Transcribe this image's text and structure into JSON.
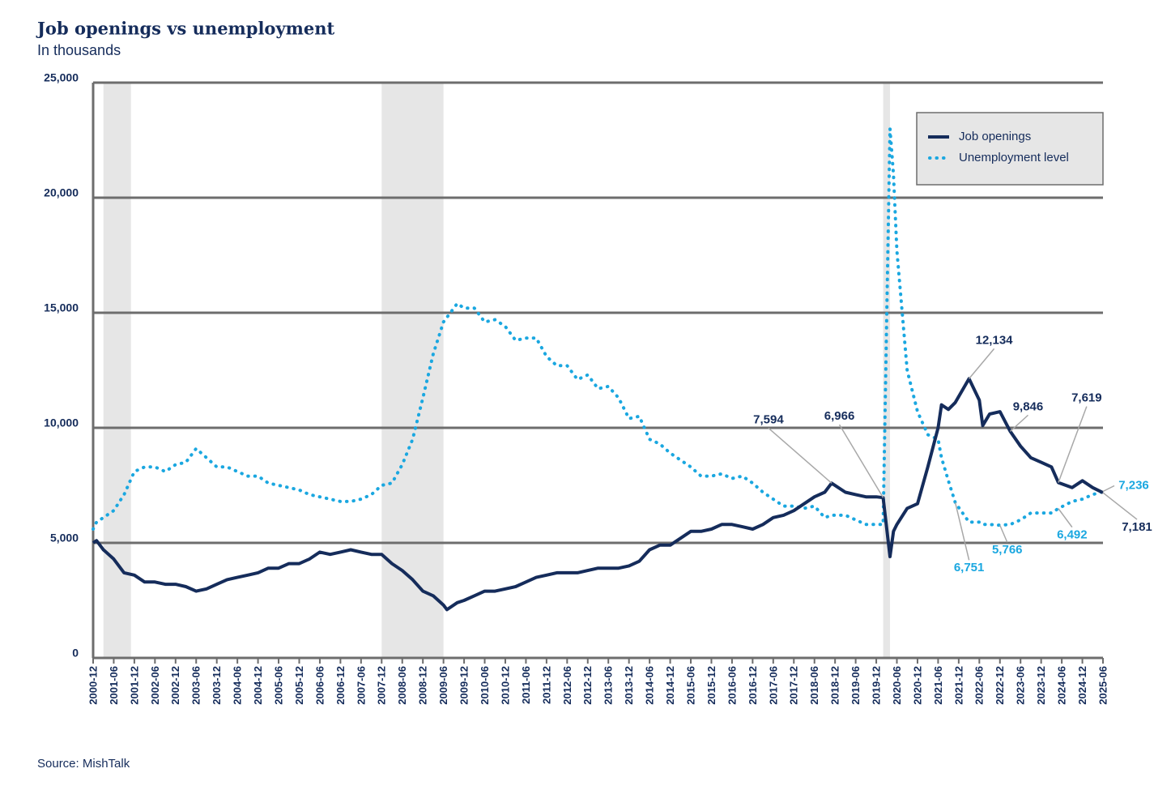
{
  "chart_data": {
    "type": "line",
    "title": "Job openings vs unemployment",
    "subtitle": "In thousands",
    "source": "Source: MishTalk",
    "legend": "upper right",
    "grid": true,
    "ylim": [
      0,
      25000
    ],
    "yticks": [
      0,
      {
        "value": 5000,
        "label": "5,000"
      },
      {
        "value": 10000,
        "label": "10,000"
      },
      {
        "value": 15000,
        "label": "15,000"
      },
      {
        "value": 20000,
        "label": "20,000"
      },
      {
        "value": 25000,
        "label": "25,000"
      }
    ],
    "xlim": [
      "2000-12",
      "2025-06"
    ],
    "xticks": [
      "2000-12",
      "2001-06",
      "2001-12",
      "2002-06",
      "2002-12",
      "2003-06",
      "2003-12",
      "2004-06",
      "2004-12",
      "2005-06",
      "2005-12",
      "2006-06",
      "2006-12",
      "2007-06",
      "2007-12",
      "2008-06",
      "2008-12",
      "2009-06",
      "2009-12",
      "2010-06",
      "2010-12",
      "2011-06",
      "2011-12",
      "2012-06",
      "2012-12",
      "2013-06",
      "2013-12",
      "2014-06",
      "2014-12",
      "2015-06",
      "2015-12",
      "2016-06",
      "2016-12",
      "2017-06",
      "2017-12",
      "2018-06",
      "2018-12",
      "2019-06",
      "2019-12",
      "2020-06",
      "2020-12",
      "2021-06",
      "2021-12",
      "2022-06",
      "2022-12",
      "2023-06",
      "2023-12",
      "2024-06",
      "2024-12",
      "2025-06"
    ],
    "shaded_periods": [
      [
        "2001-03",
        "2001-11"
      ],
      [
        "2007-12",
        "2009-06"
      ],
      [
        "2020-02",
        "2020-04"
      ]
    ],
    "x": [
      "2000-12",
      "2001-01",
      "2001-03",
      "2001-06",
      "2001-09",
      "2001-12",
      "2002-03",
      "2002-06",
      "2002-09",
      "2002-12",
      "2003-03",
      "2003-06",
      "2003-09",
      "2003-12",
      "2004-03",
      "2004-06",
      "2004-09",
      "2004-12",
      "2005-03",
      "2005-06",
      "2005-09",
      "2005-12",
      "2006-03",
      "2006-06",
      "2006-09",
      "2006-12",
      "2007-03",
      "2007-06",
      "2007-09",
      "2007-12",
      "2008-03",
      "2008-06",
      "2008-09",
      "2008-12",
      "2009-03",
      "2009-06",
      "2009-07",
      "2009-10",
      "2009-12",
      "2010-03",
      "2010-06",
      "2010-09",
      "2010-12",
      "2011-03",
      "2011-06",
      "2011-09",
      "2011-12",
      "2012-03",
      "2012-06",
      "2012-09",
      "2012-12",
      "2013-03",
      "2013-06",
      "2013-09",
      "2013-12",
      "2014-03",
      "2014-06",
      "2014-09",
      "2014-12",
      "2015-03",
      "2015-06",
      "2015-09",
      "2015-12",
      "2016-03",
      "2016-06",
      "2016-09",
      "2016-12",
      "2017-03",
      "2017-06",
      "2017-09",
      "2017-12",
      "2018-03",
      "2018-06",
      "2018-09",
      "2018-11",
      "2019-03",
      "2019-06",
      "2019-09",
      "2019-12",
      "2020-02",
      "2020-04",
      "2020-05",
      "2020-06",
      "2020-09",
      "2020-12",
      "2021-03",
      "2021-06",
      "2021-07",
      "2021-09",
      "2021-11",
      "2022-03",
      "2022-06",
      "2022-07",
      "2022-09",
      "2022-12",
      "2023-03",
      "2023-06",
      "2023-09",
      "2023-12",
      "2024-03",
      "2024-05",
      "2024-09",
      "2024-12",
      "2025-03",
      "2025-06"
    ],
    "series": [
      {
        "name": "Job openings",
        "color": "#152c5b",
        "style": "solid",
        "values": [
          5000,
          5100,
          4700,
          4300,
          3700,
          3600,
          3300,
          3300,
          3200,
          3200,
          3100,
          2900,
          3000,
          3200,
          3400,
          3500,
          3600,
          3700,
          3900,
          3900,
          4100,
          4100,
          4300,
          4600,
          4500,
          4600,
          4700,
          4600,
          4500,
          4500,
          4100,
          3800,
          3400,
          2900,
          2700,
          2300,
          2100,
          2400,
          2500,
          2700,
          2900,
          2900,
          3000,
          3100,
          3300,
          3500,
          3600,
          3700,
          3700,
          3700,
          3800,
          3900,
          3900,
          3900,
          4000,
          4200,
          4700,
          4900,
          4900,
          5200,
          5500,
          5500,
          5600,
          5800,
          5800,
          5700,
          5600,
          5800,
          6100,
          6200,
          6400,
          6700,
          7000,
          7200,
          7594,
          7200,
          7100,
          7000,
          7000,
          6966,
          4400,
          5500,
          5800,
          6500,
          6700,
          8300,
          10000,
          11000,
          10800,
          11100,
          12134,
          11200,
          10100,
          10600,
          10700,
          9846,
          9200,
          8700,
          8500,
          8300,
          7619,
          7400,
          7700,
          7400,
          7181
        ],
        "value_labels": [
          null,
          null,
          null,
          null,
          null,
          null,
          null,
          null,
          null,
          null,
          null,
          null,
          null,
          null,
          null,
          null,
          null,
          null,
          null,
          null,
          null,
          null,
          null,
          null,
          null,
          null,
          null,
          null,
          null,
          null,
          null,
          null,
          null,
          null,
          null,
          null,
          null,
          null,
          null,
          null,
          null,
          null,
          null,
          null,
          null,
          null,
          null,
          null,
          null,
          null,
          null,
          null,
          null,
          null,
          null,
          null,
          null,
          null,
          null,
          null,
          null,
          null,
          null,
          null,
          null,
          null,
          null,
          null,
          null,
          null,
          null,
          null,
          null,
          null,
          "7,594",
          null,
          null,
          null,
          null,
          "6,966",
          null,
          null,
          null,
          null,
          null,
          null,
          null,
          null,
          null,
          null,
          "12,134",
          null,
          null,
          null,
          null,
          "9,846",
          null,
          null,
          null,
          null,
          "7,619",
          null,
          null,
          null,
          "7,181"
        ]
      },
      {
        "name": "Unemployment level",
        "color": "#1aa7e0",
        "style": "dotted",
        "values": [
          5600,
          5900,
          6100,
          6400,
          7100,
          8100,
          8300,
          8300,
          8100,
          8400,
          8500,
          9100,
          8700,
          8300,
          8300,
          8100,
          7900,
          7900,
          7600,
          7500,
          7400,
          7300,
          7100,
          7000,
          6900,
          6800,
          6800,
          6900,
          7100,
          7500,
          7600,
          8400,
          9500,
          11300,
          13200,
          14600,
          14800,
          15400,
          15200,
          15200,
          14600,
          14700,
          14400,
          13800,
          13900,
          13900,
          13100,
          12700,
          12700,
          12100,
          12300,
          11700,
          11800,
          11300,
          10400,
          10500,
          9500,
          9300,
          8900,
          8600,
          8300,
          7900,
          7900,
          8000,
          7800,
          7900,
          7600,
          7200,
          6900,
          6600,
          6600,
          6500,
          6600,
          6100,
          6200,
          6200,
          6000,
          5800,
          5800,
          5800,
          23000,
          21000,
          17700,
          12500,
          10700,
          9700,
          9500,
          8700,
          7700,
          6751,
          5900,
          5900,
          5800,
          5800,
          5766,
          5800,
          6000,
          6300,
          6300,
          6300,
          6492,
          6800,
          6900,
          7100,
          7236
        ],
        "value_labels": [
          null,
          null,
          null,
          null,
          null,
          null,
          null,
          null,
          null,
          null,
          null,
          null,
          null,
          null,
          null,
          null,
          null,
          null,
          null,
          null,
          null,
          null,
          null,
          null,
          null,
          null,
          null,
          null,
          null,
          null,
          null,
          null,
          null,
          null,
          null,
          null,
          null,
          null,
          null,
          null,
          null,
          null,
          null,
          null,
          null,
          null,
          null,
          null,
          null,
          null,
          null,
          null,
          null,
          null,
          null,
          null,
          null,
          null,
          null,
          null,
          null,
          null,
          null,
          null,
          null,
          null,
          null,
          null,
          null,
          null,
          null,
          null,
          null,
          null,
          null,
          null,
          null,
          null,
          null,
          null,
          null,
          null,
          null,
          null,
          null,
          null,
          null,
          null,
          null,
          "6,751",
          null,
          null,
          null,
          null,
          "5,766",
          null,
          null,
          null,
          null,
          null,
          "6,492",
          null,
          null,
          null,
          "7,236"
        ]
      }
    ]
  }
}
